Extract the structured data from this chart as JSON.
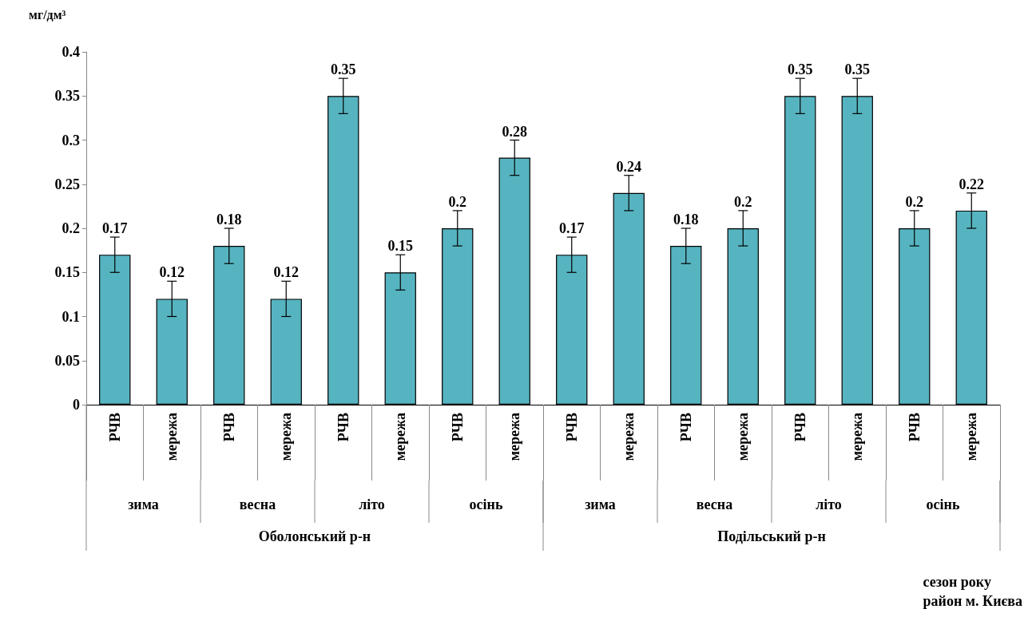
{
  "chart_data": {
    "type": "bar",
    "ylabel": "мг/дм³",
    "categories": [
      "РЧВ",
      "мережа",
      "РЧВ",
      "мережа",
      "РЧВ",
      "мережа",
      "РЧВ",
      "мережа",
      "РЧВ",
      "мережа",
      "РЧВ",
      "мережа",
      "РЧВ",
      "мережа",
      "РЧВ",
      "мережа"
    ],
    "values": [
      0.17,
      0.12,
      0.18,
      0.12,
      0.35,
      0.15,
      0.2,
      0.28,
      0.17,
      0.24,
      0.18,
      0.2,
      0.35,
      0.35,
      0.2,
      0.22
    ],
    "errors": [
      0.02,
      0.02,
      0.02,
      0.02,
      0.02,
      0.02,
      0.02,
      0.02,
      0.02,
      0.02,
      0.02,
      0.02,
      0.02,
      0.02,
      0.02,
      0.02
    ],
    "color": "#56b4c0",
    "data_labels": true,
    "grid": false,
    "ylim": [
      0,
      0.4
    ],
    "yticks": [
      0,
      0.05,
      0.1,
      0.15,
      0.2,
      0.25,
      0.3,
      0.35,
      0.4
    ],
    "annotations": [
      "зима",
      "весна",
      "літо",
      "осінь",
      "зима",
      "весна",
      "літо",
      "осінь",
      "Оболонський р-н",
      "Подільський р-н",
      "сезон року\nрайон м. Києва"
    ]
  }
}
